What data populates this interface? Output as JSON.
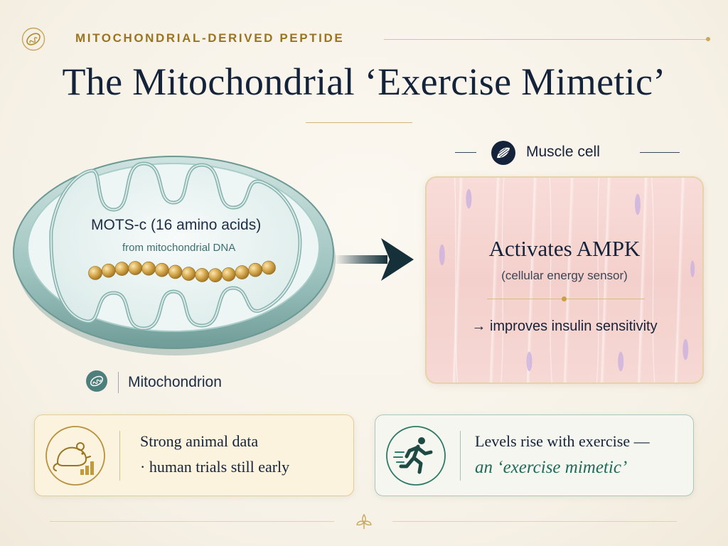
{
  "header": {
    "eyebrow": "MITOCHONDRIAL-DERIVED PEPTIDE",
    "title": "The Mitochondrial ‘Exercise Mimetic’"
  },
  "mitochondrion": {
    "peptide_name": "MOTS-c",
    "peptide_length": "(16 amino acids)",
    "origin": "from mitochondrial DNA",
    "label": "Mitochondrion",
    "bead_count": 14
  },
  "muscle_cell": {
    "label": "Muscle cell",
    "action": "Activates AMPK",
    "action_note": "(cellular energy sensor)",
    "effect": "→ improves insulin sensitivity"
  },
  "cards": {
    "animal": {
      "line1": "Strong animal data",
      "line2": "· human trials still early"
    },
    "exercise": {
      "line1": "Levels rise with exercise —",
      "line2": "an ‘exercise mimetic’"
    }
  },
  "colors": {
    "gold": "#9a7420",
    "navy": "#15233a",
    "teal": "#1e6b5a",
    "mito_membrane": "#8fb7b4",
    "bead": "#c89a3a"
  },
  "icons": {
    "eyebrow": "mitochondrion-icon",
    "mito_label": "mitochondrion-icon",
    "muscle": "muscle-icon",
    "animal": "mouse-chart-icon",
    "exercise": "runner-icon",
    "arrow": "right-arrow-icon"
  }
}
